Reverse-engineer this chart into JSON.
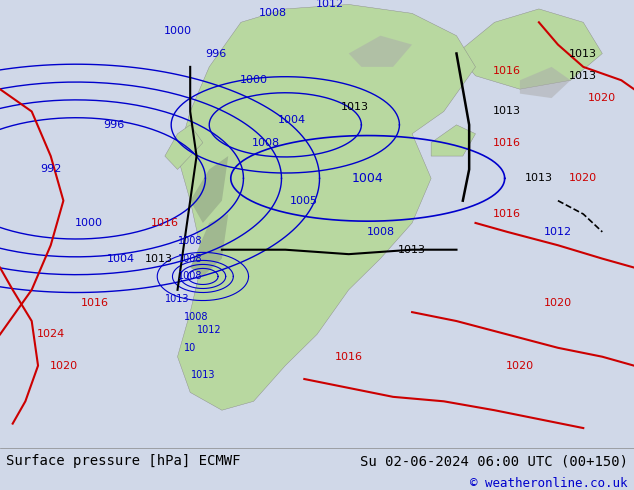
{
  "title_left": "Surface pressure [hPa] ECMWF",
  "title_right": "Su 02-06-2024 06:00 UTC (00+150)",
  "copyright": "© weatheronline.co.uk",
  "bg_color": "#d0d8e8",
  "map_bg": "#e8eef5",
  "land_color": "#b8d8a0",
  "highland_color": "#a0b890",
  "text_color_black": "#000000",
  "text_color_blue": "#0000cc",
  "text_color_red": "#cc0000",
  "contour_blue": "#0000cc",
  "contour_red": "#cc0000",
  "contour_black": "#000000",
  "footer_bg": "#ffffff",
  "title_fontsize": 11,
  "copyright_fontsize": 10
}
